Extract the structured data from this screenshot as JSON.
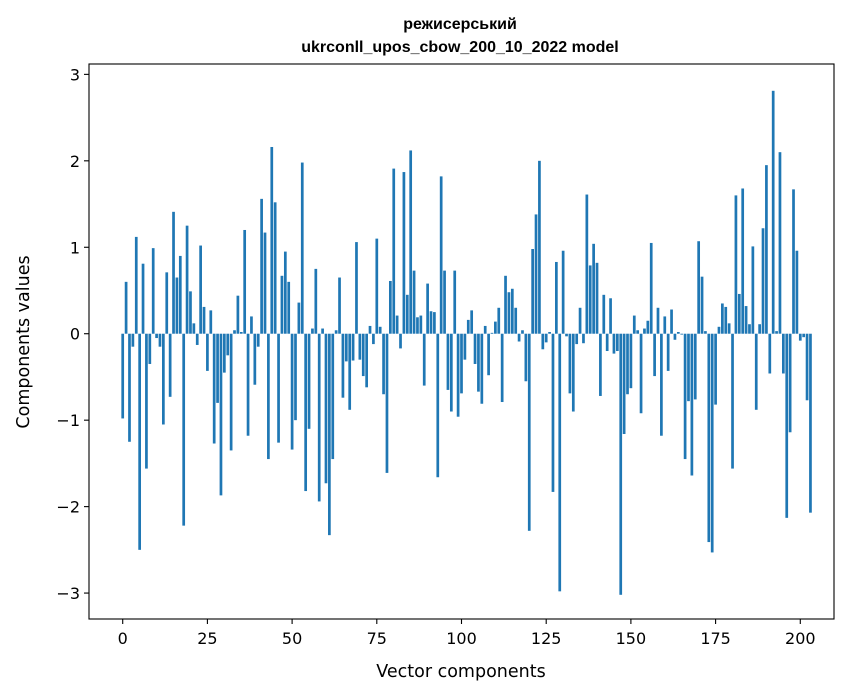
{
  "chart_data": {
    "type": "bar",
    "title": "режисерський",
    "subtitle": "ukrconll_upos_cbow_200_10_2022 model",
    "xlabel": "Vector components",
    "ylabel": "Components values",
    "xlim": [
      -9.95,
      209.95
    ],
    "ylim": [
      -3.3,
      3.12
    ],
    "xticks": [
      0,
      25,
      50,
      75,
      100,
      125,
      150,
      175,
      200
    ],
    "yticks": [
      -3,
      -2,
      -1,
      0,
      1,
      2,
      3
    ],
    "xtick_labels": [
      "0",
      "25",
      "50",
      "75",
      "100",
      "125",
      "150",
      "175",
      "200"
    ],
    "ytick_labels": [
      "−3",
      "−2",
      "−1",
      "0",
      "1",
      "2",
      "3"
    ],
    "bar_color": "#1f77b4",
    "values": [
      -0.98,
      0.6,
      -1.25,
      -0.15,
      1.12,
      -2.5,
      0.81,
      -1.56,
      -0.35,
      0.99,
      -0.05,
      -0.15,
      -1.05,
      0.71,
      -0.73,
      1.41,
      0.65,
      0.9,
      -2.22,
      1.25,
      0.49,
      0.12,
      -0.13,
      1.02,
      0.31,
      -0.43,
      0.27,
      -1.27,
      -0.8,
      -1.87,
      -0.45,
      -0.25,
      -1.35,
      0.04,
      0.44,
      0.02,
      1.2,
      -1.18,
      0.2,
      -0.59,
      -0.15,
      1.56,
      1.17,
      -1.45,
      2.16,
      1.52,
      -1.26,
      0.67,
      0.95,
      0.6,
      -1.34,
      -1.0,
      0.36,
      1.98,
      -1.82,
      -1.1,
      0.06,
      0.75,
      -1.94,
      0.06,
      -1.73,
      -2.33,
      -1.45,
      0.04,
      0.65,
      -0.74,
      -0.32,
      -0.88,
      -0.31,
      1.06,
      -0.3,
      -0.49,
      -0.62,
      0.09,
      -0.12,
      1.1,
      0.08,
      -0.7,
      -1.61,
      0.61,
      1.91,
      0.21,
      -0.17,
      1.87,
      0.45,
      2.12,
      0.73,
      0.19,
      0.21,
      -0.6,
      0.58,
      0.26,
      0.25,
      -1.66,
      1.82,
      0.73,
      -0.65,
      -0.9,
      0.73,
      -0.96,
      -0.69,
      -0.3,
      0.16,
      0.27,
      -0.35,
      -0.67,
      -0.81,
      0.09,
      -0.48,
      0.01,
      0.14,
      0.3,
      -0.79,
      0.67,
      0.48,
      0.52,
      0.3,
      -0.09,
      0.04,
      -0.55,
      -2.28,
      0.98,
      1.38,
      2.0,
      -0.18,
      -0.1,
      0.02,
      -1.83,
      0.83,
      -2.98,
      0.96,
      -0.03,
      -0.69,
      -0.9,
      -0.12,
      0.3,
      -0.11,
      1.61,
      0.79,
      1.04,
      0.82,
      -0.72,
      0.45,
      -0.2,
      0.41,
      -0.23,
      -0.2,
      -3.02,
      -1.16,
      -0.7,
      -0.63,
      0.21,
      0.04,
      -0.92,
      0.06,
      0.15,
      1.05,
      -0.49,
      0.3,
      -1.18,
      0.2,
      -0.43,
      0.28,
      -0.07,
      0.02,
      -0.01,
      -1.45,
      -0.78,
      -1.64,
      -0.76,
      1.07,
      0.66,
      0.03,
      -2.41,
      -2.53,
      -0.82,
      0.08,
      0.35,
      0.31,
      0.12,
      -1.56,
      1.6,
      0.46,
      1.68,
      0.32,
      0.11,
      1.01,
      -0.88,
      0.11,
      1.22,
      1.95,
      -0.46,
      2.81,
      0.03,
      2.1,
      -0.46,
      -2.13,
      -1.14,
      1.67,
      0.96,
      -0.08,
      -0.04,
      -0.77,
      -2.07
    ]
  }
}
